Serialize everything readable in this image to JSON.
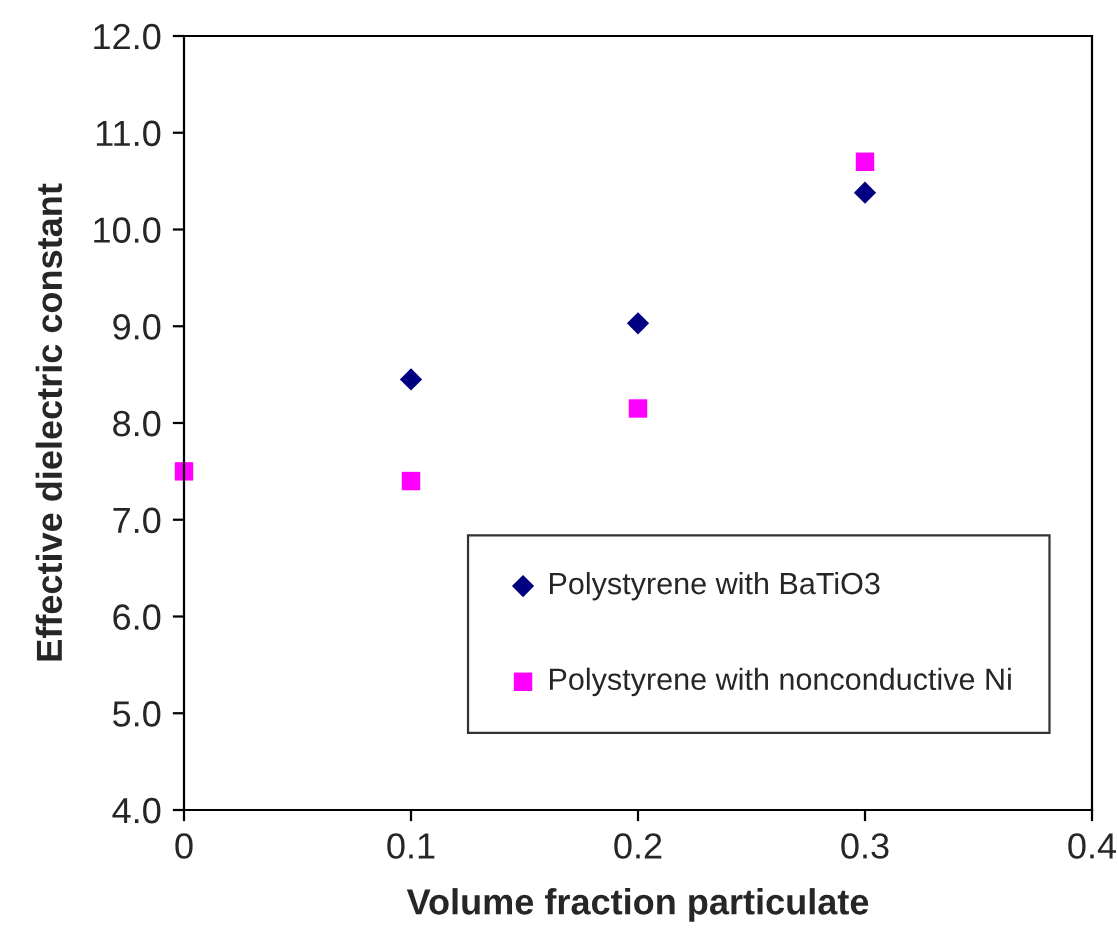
{
  "chart_data": {
    "type": "scatter",
    "xlabel": "Volume fraction particulate",
    "ylabel": "Effective dielectric constant",
    "x": [
      0,
      0.1,
      0.2,
      0.3
    ],
    "series": [
      {
        "name": "Polystyrene with BaTiO3",
        "color": "#000080",
        "marker": "diamond",
        "values": [
          null,
          8.45,
          9.03,
          10.38
        ]
      },
      {
        "name": "Polystyrene with nonconductive Ni",
        "color": "#ff00ff",
        "marker": "square",
        "values": [
          7.5,
          7.4,
          8.15,
          10.7
        ]
      }
    ],
    "xlim": [
      0,
      0.4
    ],
    "xticks": [
      0,
      0.1,
      0.2,
      0.3,
      0.4
    ],
    "ylim": [
      4,
      12
    ],
    "yticks": [
      {
        "value": 4,
        "label": "4.0"
      },
      {
        "value": 5,
        "label": "5.0"
      },
      {
        "value": 6,
        "label": "6.0"
      },
      {
        "value": 7,
        "label": "7.0"
      },
      {
        "value": 8,
        "label": "8.0"
      },
      {
        "value": 9,
        "label": "9.0"
      },
      {
        "value": 10,
        "label": "10.0"
      },
      {
        "value": 11,
        "label": "11.0"
      },
      {
        "value": 12,
        "label": "12.0"
      }
    ],
    "grid": false,
    "legend": "bottom right"
  }
}
